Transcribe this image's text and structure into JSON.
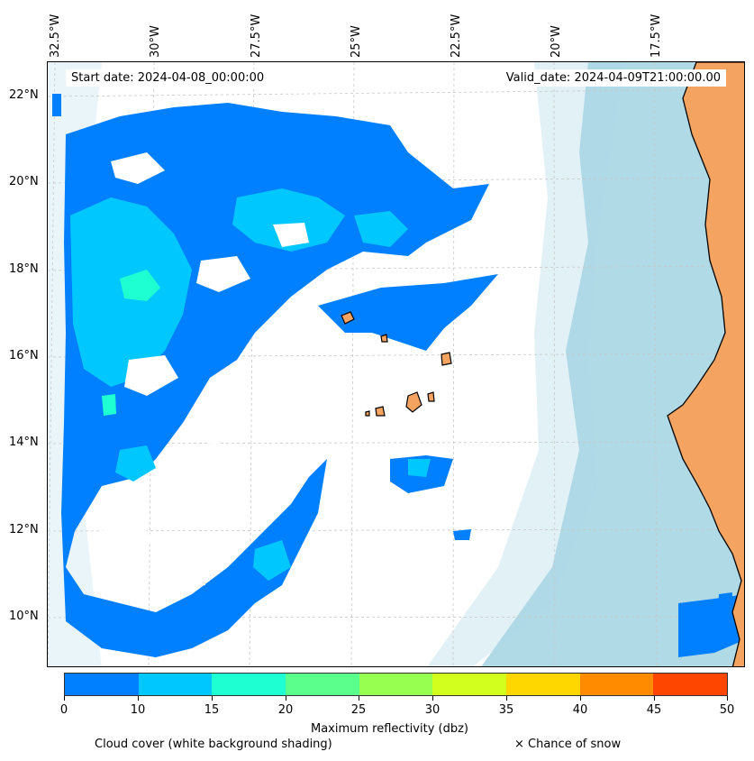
{
  "header": {
    "start_date": "Start date: 2024-04-08_00:00:00",
    "valid_date": "Valid_date: 2024-04-09T21:00:00.00"
  },
  "axes": {
    "longitude_labels": [
      "32.5°W",
      "30°W",
      "27.5°W",
      "25°W",
      "22.5°W",
      "20°W",
      "17.5°W"
    ],
    "latitude_labels": [
      "22°N",
      "20°N",
      "18°N",
      "16°N",
      "14°N",
      "12°N",
      "10°N"
    ]
  },
  "colorbar": {
    "title": "Maximum reflectivity (dbz)",
    "ticks": [
      "0",
      "10",
      "15",
      "20",
      "25",
      "30",
      "35",
      "40",
      "45",
      "50"
    ],
    "colors": [
      "#0080ff",
      "#00c8ff",
      "#1effd2",
      "#5aff8c",
      "#96ff50",
      "#d2ff1e",
      "#ffd700",
      "#ff8c00",
      "#ff4600"
    ]
  },
  "legend": {
    "cloud_cover": "Cloud cover (white background shading)",
    "snow": "× Chance of snow"
  },
  "colors": {
    "land": "#f4a460",
    "ocean_cloud": "#add8e6",
    "reflectivity_low": "#0080ff",
    "reflectivity_mid": "#00c8ff",
    "reflectivity_high": "#1effd2"
  }
}
